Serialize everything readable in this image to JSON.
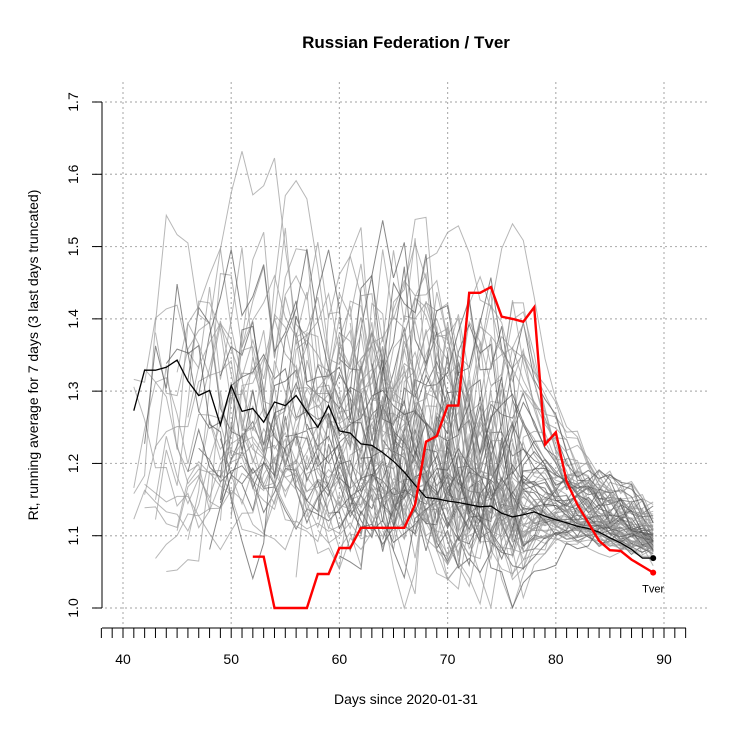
{
  "chart_data": {
    "type": "line",
    "title": "Russian Federation / Tver",
    "xlabel": "Days since 2020-01-31",
    "ylabel": "Rt, running average for 7 days (3 last days truncated)",
    "xlim": [
      38,
      92
    ],
    "ylim": [
      1.0,
      1.7
    ],
    "x_ticks": [
      40,
      50,
      60,
      70,
      80,
      90
    ],
    "y_ticks": [
      1.0,
      1.1,
      1.2,
      1.3,
      1.4,
      1.5,
      1.6,
      1.7
    ],
    "grid": true,
    "colors": {
      "highlight": "#ff0000",
      "national": "#000000",
      "regions": "#7f7f7f"
    },
    "series": [
      {
        "role": "national",
        "x": [
          41,
          42,
          43,
          44,
          45,
          46,
          47,
          48,
          49,
          50,
          51,
          52,
          53,
          54,
          55,
          56,
          57,
          58,
          59,
          60,
          61,
          62,
          63,
          64,
          65,
          66,
          67,
          68,
          69,
          70,
          71,
          72,
          73,
          74,
          75,
          76,
          77,
          78,
          79,
          80,
          81,
          82,
          83,
          84,
          85,
          86,
          87,
          88,
          89
        ],
        "values": [
          1.273,
          1.329,
          1.329,
          1.333,
          1.343,
          1.314,
          1.294,
          1.301,
          1.253,
          1.308,
          1.272,
          1.276,
          1.257,
          1.285,
          1.28,
          1.294,
          1.272,
          1.25,
          1.28,
          1.245,
          1.242,
          1.227,
          1.225,
          1.215,
          1.203,
          1.188,
          1.17,
          1.153,
          1.151,
          1.148,
          1.146,
          1.143,
          1.14,
          1.141,
          1.131,
          1.126,
          1.129,
          1.133,
          1.127,
          1.122,
          1.118,
          1.113,
          1.11,
          1.105,
          1.097,
          1.09,
          1.081,
          1.069,
          1.069
        ]
      },
      {
        "name": "Tver",
        "role": "highlight",
        "x": [
          52,
          53,
          54,
          55,
          56,
          57,
          58,
          59,
          60,
          61,
          62,
          63,
          64,
          65,
          66,
          67,
          68,
          69,
          70,
          71,
          72,
          73,
          74,
          75,
          76,
          77,
          78,
          79,
          80,
          81,
          82,
          83,
          84,
          85,
          86,
          87,
          88,
          89
        ],
        "values": [
          1.071,
          1.071,
          1.0,
          1.0,
          1.0,
          1.0,
          1.047,
          1.047,
          1.083,
          1.083,
          1.111,
          1.111,
          1.111,
          1.111,
          1.111,
          1.143,
          1.23,
          1.238,
          1.28,
          1.28,
          1.436,
          1.436,
          1.444,
          1.403,
          1.4,
          1.396,
          1.416,
          1.226,
          1.243,
          1.175,
          1.143,
          1.118,
          1.093,
          1.08,
          1.079,
          1.067,
          1.058,
          1.049
        ]
      }
    ]
  }
}
